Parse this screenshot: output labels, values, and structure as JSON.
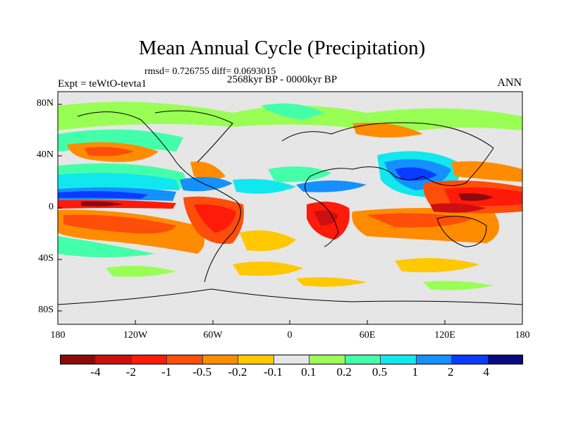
{
  "title": "Mean Annual Cycle (Precipitation)",
  "stats": "rmsd= 0.726755 diff= 0.0693015",
  "subtitle": "2568kyr BP - 0000kyr BP",
  "experiment": "Expt = teWtO-tevta1",
  "season": "ANN",
  "y_ticks": [
    "80N",
    "40N",
    "0",
    "40S",
    "80S"
  ],
  "x_ticks": [
    "180",
    "120W",
    "60W",
    "0",
    "60E",
    "120E",
    "180"
  ],
  "colorbar": {
    "colors": [
      "#8b0a0a",
      "#cc1010",
      "#ff1a0a",
      "#ff4d0a",
      "#ff8c00",
      "#ffc800",
      "#e6e6e6",
      "#99ff55",
      "#44ffaa",
      "#11e8ee",
      "#1490ff",
      "#0a3cff",
      "#0a0a80"
    ],
    "labels": [
      "-4",
      "-2",
      "-1",
      "-0.5",
      "-0.2",
      "-0.1",
      "0.1",
      "0.2",
      "0.5",
      "1",
      "2",
      "4"
    ]
  }
}
